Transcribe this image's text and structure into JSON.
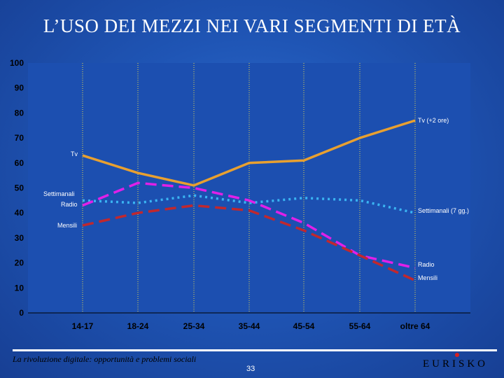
{
  "title": "L’USO DEI MEZZI NEI VARI SEGMENTI DI ETÀ",
  "footer": {
    "caption": "La rivoluzione digitale: opportunità e problemi sociali",
    "page": "33",
    "logo": "EURISKO"
  },
  "colors": {
    "plot_bg": "#1c4fb0",
    "grid": "#e8d84a",
    "axis_text": "#000000",
    "Tv": "#e8a030",
    "Settimanali": "#3ab4f2",
    "Radio": "#e020e8",
    "Mensili": "#c0282e"
  },
  "chart_data": {
    "type": "line",
    "title": "",
    "xlabel": "",
    "ylabel": "",
    "ylim": [
      0,
      100
    ],
    "yticks": [
      0,
      10,
      20,
      30,
      40,
      50,
      60,
      70,
      80,
      90,
      100
    ],
    "categories": [
      "14-17",
      "18-24",
      "25-34",
      "35-44",
      "45-54",
      "55-64",
      "oltre 64"
    ],
    "grid": "vertical",
    "series": [
      {
        "name": "Tv",
        "end_label": "Tv (+2 ore)",
        "style": "solid",
        "values": [
          63,
          56,
          51,
          60,
          61,
          70,
          77
        ]
      },
      {
        "name": "Settimanali",
        "end_label": "Settimanali (7 gg.)",
        "style": "dotted",
        "values": [
          45,
          44,
          47,
          44,
          46,
          45,
          40
        ]
      },
      {
        "name": "Radio",
        "end_label": "Radio",
        "style": "dashed",
        "values": [
          43,
          52,
          50,
          45,
          36,
          23,
          18
        ]
      },
      {
        "name": "Mensili",
        "end_label": "Mensili",
        "style": "dashed",
        "values": [
          35,
          40,
          43,
          41,
          33,
          23,
          13
        ]
      }
    ]
  }
}
